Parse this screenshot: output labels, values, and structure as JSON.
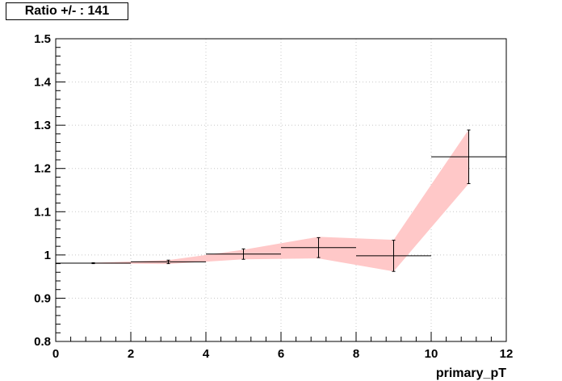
{
  "title": "Ratio +/- : 141",
  "chart_data": {
    "type": "scatter",
    "title": "Ratio +/- : 141",
    "xlabel": "primary_pT",
    "ylabel": "",
    "xlim": [
      0,
      12
    ],
    "ylim": [
      0.8,
      1.5
    ],
    "grid": true,
    "x_ticks": [
      "0",
      "2",
      "4",
      "6",
      "8",
      "10",
      "12"
    ],
    "y_ticks": [
      "0.8",
      "0.9",
      "1",
      "1.1",
      "1.2",
      "1.3",
      "1.4",
      "1.5"
    ],
    "points": [
      {
        "x": 1,
        "y": 0.981,
        "xerr": 1,
        "yerr": 0.001
      },
      {
        "x": 3,
        "y": 0.984,
        "xerr": 1,
        "yerr": 0.004
      },
      {
        "x": 5,
        "y": 1.002,
        "xerr": 1,
        "yerr": 0.012
      },
      {
        "x": 7,
        "y": 1.017,
        "xerr": 1,
        "yerr": 0.023
      },
      {
        "x": 9,
        "y": 0.998,
        "xerr": 1,
        "yerr": 0.036
      },
      {
        "x": 11,
        "y": 1.227,
        "xerr": 1,
        "yerr": 0.062
      }
    ],
    "band": {
      "color": "#ffc8c8",
      "x": [
        1,
        3,
        5,
        7,
        9,
        11
      ],
      "lower": [
        0.98,
        0.979,
        0.99,
        0.992,
        0.962,
        1.165
      ],
      "upper": [
        0.982,
        0.988,
        1.012,
        1.042,
        1.035,
        1.29
      ]
    }
  }
}
